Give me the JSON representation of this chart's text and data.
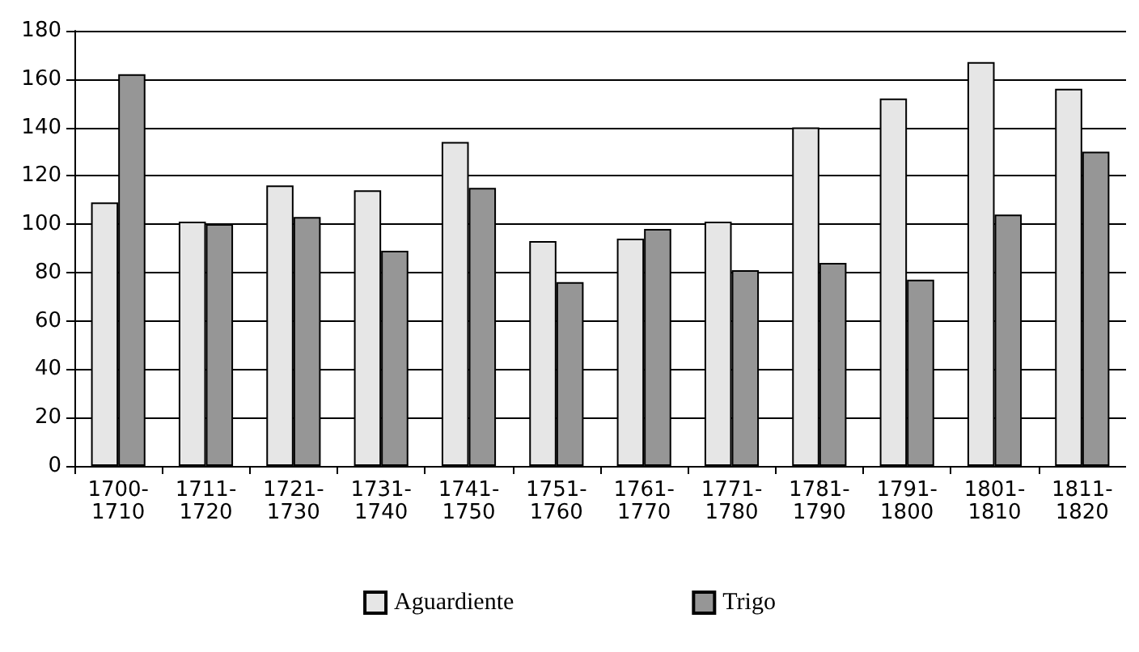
{
  "chart_data": {
    "type": "bar",
    "categories": [
      "1700-1710",
      "1711-1720",
      "1721-1730",
      "1731-1740",
      "1741-1750",
      "1751-1760",
      "1761-1770",
      "1771-1780",
      "1781-1790",
      "1791-1800",
      "1801-1810",
      "1811-1820"
    ],
    "series": [
      {
        "name": "Aguardiente",
        "color": "#e6e6e6",
        "values": [
          109,
          101,
          116,
          114,
          134,
          93,
          94,
          101,
          140,
          152,
          167,
          156
        ]
      },
      {
        "name": "Trigo",
        "color": "#969696",
        "values": [
          162,
          100,
          103,
          89,
          115,
          76,
          98,
          81,
          84,
          77,
          104,
          130
        ]
      }
    ],
    "ylim": [
      0,
      180
    ],
    "yticks": [
      0,
      20,
      40,
      60,
      80,
      100,
      120,
      140,
      160,
      180
    ],
    "grid": "y",
    "legend": "bottom"
  }
}
